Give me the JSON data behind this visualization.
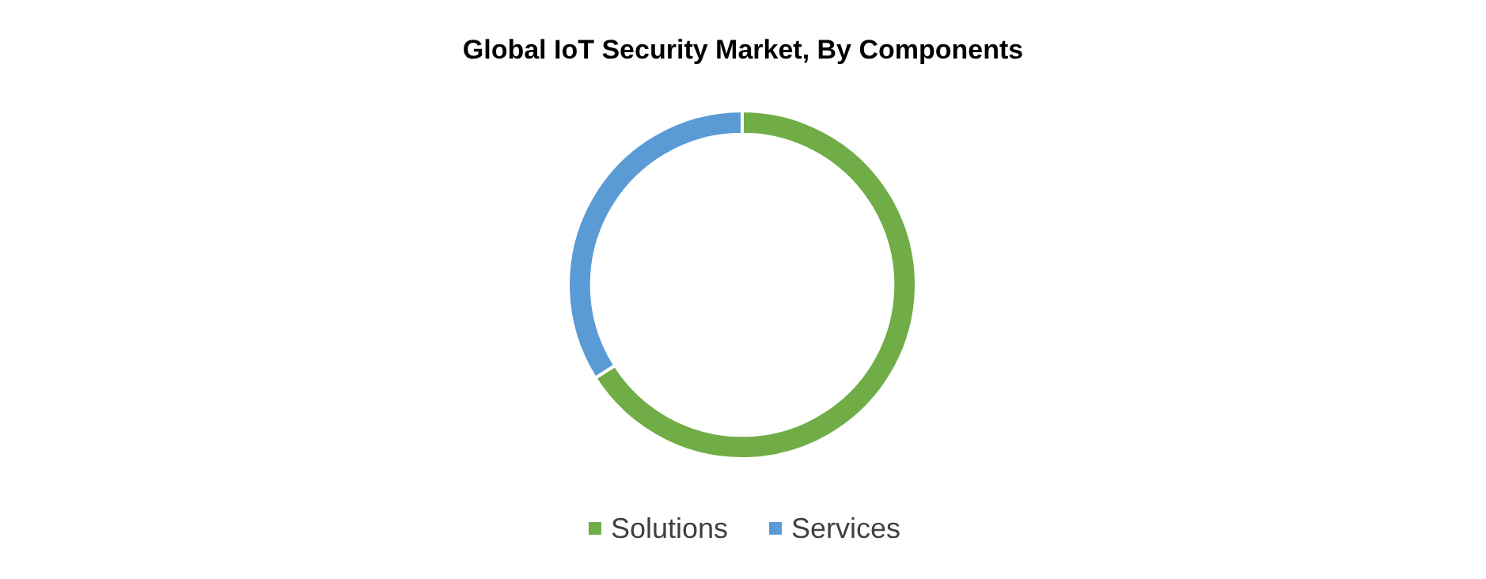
{
  "chart_data": {
    "type": "donut",
    "title": "Global IoT Security Market, By Components",
    "categories": [
      "Solutions",
      "Services"
    ],
    "values": [
      66,
      34
    ],
    "colors": [
      "#70ad47",
      "#5b9bd5"
    ],
    "legend": "bottom"
  }
}
